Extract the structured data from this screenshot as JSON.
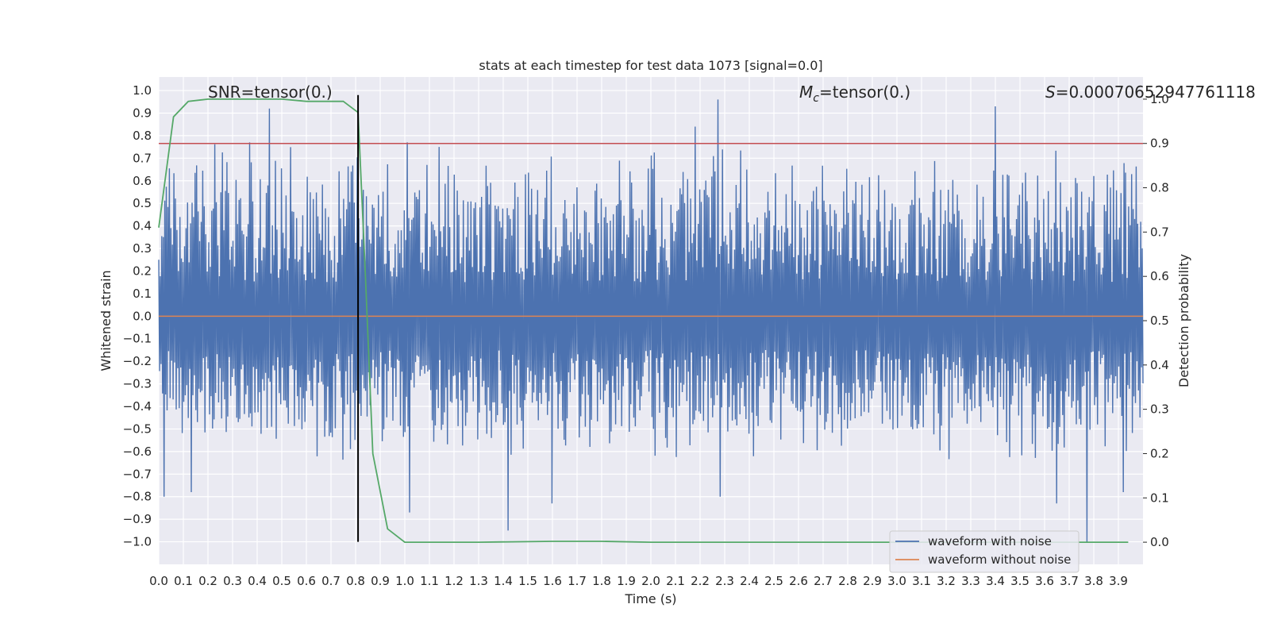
{
  "chart_data": {
    "type": "line",
    "title": "stats at each timestep for test data 1073 [signal=0.0]",
    "xlabel": "Time (s)",
    "ylabel": "Whitened strain",
    "y2label": "Detection probability",
    "xlim": [
      0.0,
      4.0
    ],
    "ylim": [
      -1.1,
      1.06
    ],
    "y2lim": [
      -0.05,
      1.05
    ],
    "x_ticks": [
      0.0,
      0.1,
      0.2,
      0.3,
      0.4,
      0.5,
      0.6,
      0.7,
      0.8,
      0.9,
      1.0,
      1.1,
      1.2,
      1.3,
      1.4,
      1.5,
      1.6,
      1.7,
      1.8,
      1.9,
      2.0,
      2.1,
      2.2,
      2.3,
      2.4,
      2.5,
      2.6,
      2.7,
      2.8,
      2.9,
      3.0,
      3.1,
      3.2,
      3.3,
      3.4,
      3.5,
      3.6,
      3.7,
      3.8,
      3.9
    ],
    "x_tick_labels": [
      "0.0",
      "0.1",
      "0.2",
      "0.3",
      "0.4",
      "0.5",
      "0.6",
      "0.7",
      "0.8",
      "0.9",
      "1.0",
      "1.1",
      "1.2",
      "1.3",
      "1.4",
      "1.5",
      "1.6",
      "1.7",
      "1.8",
      "1.9",
      "2.0",
      "2.1",
      "2.2",
      "2.3",
      "2.4",
      "2.5",
      "2.6",
      "2.7",
      "2.8",
      "2.9",
      "3.0",
      "3.1",
      "3.2",
      "3.3",
      "3.4",
      "3.5",
      "3.6",
      "3.7",
      "3.8",
      "3.9"
    ],
    "y_ticks": [
      1.0,
      0.9,
      0.8,
      0.7,
      0.6,
      0.5,
      0.4,
      0.3,
      0.2,
      0.1,
      0.0,
      -0.1,
      -0.2,
      -0.3,
      -0.4,
      -0.5,
      -0.6,
      -0.7,
      -0.8,
      -0.9,
      -1.0
    ],
    "y_tick_labels": [
      "1.0",
      "0.9",
      "0.8",
      "0.7",
      "0.6",
      "0.5",
      "0.4",
      "0.3",
      "0.2",
      "0.1",
      "0.0",
      "−0.1",
      "−0.2",
      "−0.3",
      "−0.4",
      "−0.5",
      "−0.6",
      "−0.7",
      "−0.8",
      "−0.9",
      "−1.0"
    ],
    "y2_ticks": [
      0.0,
      0.1,
      0.2,
      0.3,
      0.4,
      0.5,
      0.6,
      0.7,
      0.8,
      0.9,
      1.0
    ],
    "y2_tick_labels": [
      "0.0",
      "0.1",
      "0.2",
      "0.3",
      "0.4",
      "0.5",
      "0.6",
      "0.7",
      "0.8",
      "0.9",
      "1.0"
    ],
    "grid": true,
    "background": "#eaeaf2",
    "annotations": {
      "snr": "SNR=tensor(0.)",
      "mc_symbol": "M",
      "mc_subscript": "c",
      "mc_value": "=tensor(0.)",
      "s_symbol": "S",
      "s_value": "=0.00070652947761118"
    },
    "series": [
      {
        "name": "waveform with noise",
        "axis": "left",
        "color": "#4c72b0",
        "style": "dense-noise",
        "x_range": [
          0.0,
          4.0
        ],
        "envelope_upper_typical": 0.55,
        "envelope_lower_typical": -0.45,
        "peaks": [
          {
            "x": 0.45,
            "y": 0.92
          },
          {
            "x": 0.37,
            "y": 0.77
          },
          {
            "x": 2.27,
            "y": 0.96
          },
          {
            "x": 3.4,
            "y": 0.93
          },
          {
            "x": 2.18,
            "y": 0.84
          },
          {
            "x": 1.01,
            "y": 0.77
          },
          {
            "x": 1.14,
            "y": 0.75
          },
          {
            "x": 1.42,
            "y": -0.95
          },
          {
            "x": 3.77,
            "y": -1.0
          },
          {
            "x": 1.02,
            "y": -0.87
          },
          {
            "x": 0.02,
            "y": -0.8
          },
          {
            "x": 0.13,
            "y": -0.78
          },
          {
            "x": 3.65,
            "y": -0.83
          },
          {
            "x": 1.6,
            "y": -0.83
          },
          {
            "x": 2.28,
            "y": -0.8
          },
          {
            "x": 3.92,
            "y": -0.78
          }
        ]
      },
      {
        "name": "waveform without noise",
        "axis": "left",
        "color": "#dd8452",
        "x": [
          0.0,
          4.0
        ],
        "y": [
          0.0,
          0.0
        ]
      },
      {
        "name": "",
        "axis": "right",
        "color": "#55a868",
        "x": [
          0.0,
          0.06,
          0.12,
          0.2,
          0.3,
          0.5,
          0.6,
          0.75,
          0.81,
          0.84,
          0.87,
          0.93,
          1.0,
          1.3,
          1.6,
          1.8,
          2.0,
          2.5,
          3.0,
          3.5,
          3.94
        ],
        "y": [
          0.71,
          0.96,
          0.995,
          1.0,
          1.0,
          1.0,
          0.995,
          0.995,
          0.97,
          0.6,
          0.2,
          0.03,
          0.0,
          0.0,
          0.002,
          0.002,
          0.0,
          0.0,
          0.0,
          0.0,
          0.0
        ]
      }
    ],
    "threshold_line": {
      "axis": "right",
      "y": 0.9,
      "color": "#c44e52"
    },
    "marker_line": {
      "x": 0.81,
      "y_range": [
        -1.0,
        0.98
      ],
      "color": "#000000"
    },
    "legend": {
      "placement": "lower right",
      "entries": [
        {
          "label": "waveform with noise",
          "color": "#4c72b0"
        },
        {
          "label": "waveform without noise",
          "color": "#dd8452"
        }
      ]
    }
  }
}
